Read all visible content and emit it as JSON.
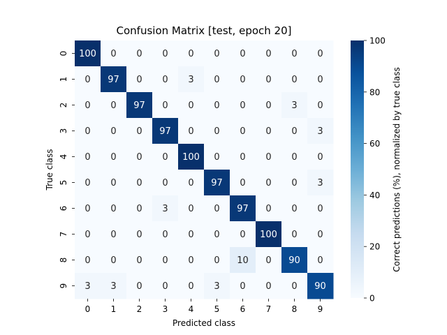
{
  "chart_data": {
    "type": "heatmap",
    "title": "Confusion Matrix [test, epoch 20]",
    "xlabel": "Predicted class",
    "ylabel": "True class",
    "x_categories": [
      "0",
      "1",
      "2",
      "3",
      "4",
      "5",
      "6",
      "7",
      "8",
      "9"
    ],
    "y_categories": [
      "0",
      "1",
      "2",
      "3",
      "4",
      "5",
      "6",
      "7",
      "8",
      "9"
    ],
    "values": [
      [
        100,
        0,
        0,
        0,
        0,
        0,
        0,
        0,
        0,
        0
      ],
      [
        0,
        97,
        0,
        0,
        3,
        0,
        0,
        0,
        0,
        0
      ],
      [
        0,
        0,
        97,
        0,
        0,
        0,
        0,
        0,
        3,
        0
      ],
      [
        0,
        0,
        0,
        97,
        0,
        0,
        0,
        0,
        0,
        3
      ],
      [
        0,
        0,
        0,
        0,
        100,
        0,
        0,
        0,
        0,
        0
      ],
      [
        0,
        0,
        0,
        0,
        0,
        97,
        0,
        0,
        0,
        3
      ],
      [
        0,
        0,
        0,
        3,
        0,
        0,
        97,
        0,
        0,
        0
      ],
      [
        0,
        0,
        0,
        0,
        0,
        0,
        0,
        100,
        0,
        0
      ],
      [
        0,
        0,
        0,
        0,
        0,
        0,
        10,
        0,
        90,
        0
      ],
      [
        3,
        3,
        0,
        0,
        0,
        3,
        0,
        0,
        0,
        90
      ]
    ],
    "colorbar": {
      "label": "Correct predictions (%), normalized by true class",
      "range": [
        0,
        100
      ],
      "ticks": [
        "0",
        "20",
        "40",
        "60",
        "80",
        "100"
      ],
      "colormap": "Blues",
      "low_color": "#f7fbff",
      "high_color": "#08306b"
    },
    "grid": false
  }
}
